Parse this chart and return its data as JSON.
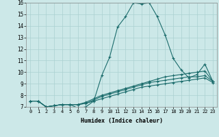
{
  "xlabel": "Humidex (Indice chaleur)",
  "ylabel": "",
  "background_color": "#cce8e8",
  "grid_color": "#aad0d0",
  "line_color": "#1a6b6b",
  "xlim": [
    -0.5,
    23.5
  ],
  "ylim": [
    7,
    16
  ],
  "xticks": [
    0,
    1,
    2,
    3,
    4,
    5,
    6,
    7,
    8,
    9,
    10,
    11,
    12,
    13,
    14,
    15,
    16,
    17,
    18,
    19,
    20,
    21,
    22,
    23
  ],
  "yticks": [
    7,
    8,
    9,
    10,
    11,
    12,
    13,
    14,
    15,
    16
  ],
  "series": [
    [
      7.5,
      7.5,
      7.0,
      7.1,
      7.2,
      7.2,
      6.9,
      7.0,
      7.5,
      9.7,
      11.3,
      13.9,
      14.8,
      16.0,
      15.9,
      16.0,
      14.8,
      13.2,
      11.2,
      10.2,
      9.5,
      9.8,
      10.7,
      9.2
    ],
    [
      7.5,
      7.5,
      7.0,
      7.1,
      7.2,
      7.2,
      7.2,
      7.3,
      7.6,
      7.9,
      8.1,
      8.3,
      8.5,
      8.7,
      8.9,
      9.1,
      9.2,
      9.3,
      9.4,
      9.5,
      9.6,
      9.6,
      9.7,
      9.2
    ],
    [
      7.5,
      7.5,
      7.0,
      7.1,
      7.2,
      7.2,
      7.2,
      7.3,
      7.5,
      7.7,
      7.9,
      8.1,
      8.3,
      8.5,
      8.7,
      8.8,
      8.9,
      9.0,
      9.1,
      9.2,
      9.3,
      9.4,
      9.5,
      9.1
    ],
    [
      7.5,
      7.5,
      7.0,
      7.1,
      7.2,
      7.2,
      7.2,
      7.4,
      7.7,
      8.0,
      8.2,
      8.4,
      8.6,
      8.8,
      9.0,
      9.2,
      9.4,
      9.6,
      9.7,
      9.8,
      9.9,
      10.0,
      10.1,
      9.2
    ]
  ]
}
